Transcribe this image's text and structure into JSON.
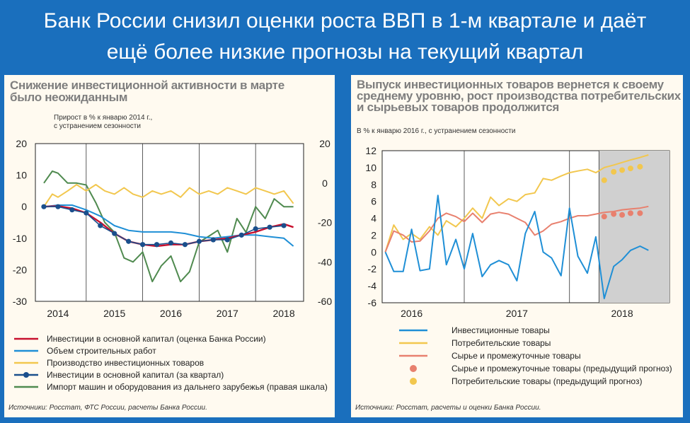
{
  "headline": {
    "line1": "Банк России снизил оценки роста ВВП в 1-м квартале и даёт",
    "line2": "ещё более низкие прогнозы на текущий квартал"
  },
  "left": {
    "title_line1": "Снижение инвестиционной активности в марте",
    "title_line2": "было неожиданным",
    "subtitle_line1": "Прирост в % к январю 2014 г.,",
    "subtitle_line2": "с устранением сезонности",
    "source": "Источники: Росстат, ФТС России,  расчеты Банка России.",
    "legend": [
      "Инвестиции в основной капитал (оценка Банка России)",
      "Объем строительных работ",
      "Производство инвестиционных товаров",
      "Инвестиции в основной капитал (за квартал)",
      "Импорт машин и оборудования из дальнего зарубежья (правая шкала)"
    ]
  },
  "right": {
    "title_line1": "Выпуск инвестиционных товаров вернется к своему",
    "title_line2": "среднему уровню, рост производства потребительских",
    "title_line3": "и сырьевых товаров продолжится",
    "subtitle": "В % к январю 2016 г., с устранением сезонности",
    "source": "Источники: Росстат, расчеты и оценки Банка России.",
    "legend": [
      "Инвестиционные товары",
      "Потребительские товары",
      "Сырье и промежуточные товары",
      "Сырье и промежуточные товары (предыдущий прогноз)",
      "Потребительские товары (предыдущий прогноз)"
    ]
  },
  "chart_data": [
    {
      "type": "line",
      "title": "Снижение инвестиционной активности в марте было неожиданным",
      "ylabel": "Прирост в % к январю 2014 г., с устранением сезонности",
      "x_ticks": [
        "2014",
        "2015",
        "2016",
        "2017",
        "2018"
      ],
      "ylim_left": [
        -30,
        20
      ],
      "yticks_left": [
        20,
        10,
        0,
        -10,
        -20,
        -30
      ],
      "ylim_right": [
        -60,
        20
      ],
      "yticks_right": [
        20,
        0,
        -20,
        -40,
        -60
      ],
      "grid": "vertical",
      "colors": {
        "investment_est": "#c8102e",
        "construction": "#1f8fd6",
        "production": "#f2c74e",
        "investment_q": "#1a4f8c",
        "imports": "#4f8a4f"
      },
      "series": [
        {
          "name": "Инвестиции в основной капитал (оценка Банка России)",
          "axis": "left",
          "x": [
            2013.75,
            2014.0,
            2014.25,
            2014.5,
            2014.75,
            2015.0,
            2015.25,
            2015.5,
            2015.75,
            2016.0,
            2016.25,
            2016.5,
            2016.75,
            2017.0,
            2017.25,
            2017.5,
            2017.75,
            2018.0,
            2018.17
          ],
          "y": [
            0,
            0.2,
            -0.5,
            -2,
            -5,
            -8.5,
            -11,
            -12,
            -12.5,
            -12,
            -12,
            -11,
            -10.5,
            -10,
            -9,
            -8,
            -6.5,
            -5.5,
            -6.5
          ]
        },
        {
          "name": "Объем строительных работ",
          "axis": "left",
          "x": [
            2013.75,
            2014.0,
            2014.25,
            2014.5,
            2014.75,
            2015.0,
            2015.25,
            2015.5,
            2015.75,
            2016.0,
            2016.25,
            2016.5,
            2016.75,
            2017.0,
            2017.25,
            2017.5,
            2017.75,
            2018.0,
            2018.17
          ],
          "y": [
            0,
            0.5,
            0.5,
            -1,
            -3,
            -6,
            -7.5,
            -8,
            -8,
            -8,
            -8.5,
            -9.5,
            -10,
            -9.5,
            -9,
            -9,
            -9.5,
            -10,
            -12.5
          ]
        },
        {
          "name": "Производство инвестиционных товаров",
          "axis": "left",
          "x": [
            2013.75,
            2013.9,
            2014.0,
            2014.17,
            2014.33,
            2014.5,
            2014.67,
            2014.83,
            2015.0,
            2015.17,
            2015.33,
            2015.5,
            2015.67,
            2015.83,
            2016.0,
            2016.17,
            2016.33,
            2016.5,
            2016.67,
            2016.83,
            2017.0,
            2017.17,
            2017.33,
            2017.5,
            2017.67,
            2017.83,
            2018.0,
            2018.17
          ],
          "y": [
            0,
            4,
            3,
            5,
            7,
            5,
            7,
            5,
            4,
            6,
            4,
            3,
            5,
            4,
            5,
            3,
            6,
            4,
            5,
            4,
            6,
            5,
            4,
            6,
            5,
            4,
            5,
            1
          ]
        },
        {
          "name": "Инвестиции в основной капитал (за квартал)",
          "axis": "left",
          "x": [
            2013.75,
            2014.0,
            2014.25,
            2014.5,
            2014.75,
            2015.0,
            2015.25,
            2015.5,
            2015.75,
            2016.0,
            2016.25,
            2016.5,
            2016.75,
            2017.0,
            2017.25,
            2017.5,
            2017.75,
            2018.0
          ],
          "y": [
            0,
            0,
            -1,
            -2,
            -6,
            -8.5,
            -11,
            -12,
            -12,
            -11.5,
            -12,
            -11,
            -10.5,
            -10.5,
            -9,
            -7,
            -6.5,
            -6
          ]
        },
        {
          "name": "Импорт машин и оборудования из дальнего зарубежья (правая шкала)",
          "axis": "right",
          "x": [
            2013.75,
            2013.9,
            2014.0,
            2014.17,
            2014.33,
            2014.5,
            2014.67,
            2014.83,
            2015.0,
            2015.17,
            2015.33,
            2015.5,
            2015.67,
            2015.83,
            2016.0,
            2016.17,
            2016.33,
            2016.5,
            2016.67,
            2016.83,
            2017.0,
            2017.17,
            2017.33,
            2017.5,
            2017.67,
            2017.83,
            2018.0,
            2018.17
          ],
          "y": [
            0,
            6,
            5,
            0,
            0,
            -1,
            -10,
            -20,
            -25,
            -38,
            -40,
            -35,
            -50,
            -42,
            -37,
            -50,
            -45,
            -30,
            -27,
            -24,
            -35,
            -18,
            -25,
            -12,
            -18,
            -8,
            -12,
            -12
          ]
        }
      ]
    },
    {
      "type": "line",
      "title": "Выпуск инвестиционных товаров вернется к своему среднему уровню, рост производства потребительских и сырьевых товаров продолжится",
      "ylabel": "В % к январю 2016 г., с устранением сезонности",
      "x_ticks": [
        "2016",
        "2017",
        "2018"
      ],
      "ylim": [
        -6,
        12
      ],
      "yticks": [
        12,
        10,
        8,
        6,
        4,
        2,
        0,
        -2,
        -4,
        -6
      ],
      "grid": "vertical",
      "forecast_shaded_from": 2018.0,
      "colors": {
        "investment_goods": "#1f8fd6",
        "consumer_goods": "#f2c74e",
        "raw_materials": "#e8806e",
        "raw_prev": "#e8806e",
        "consumer_prev": "#f2c74e",
        "forecast_area": "#d0d0d0"
      },
      "series": [
        {
          "name": "Инвестиционные товары",
          "x": [
            2015.75,
            2015.83,
            2015.92,
            2016.0,
            2016.08,
            2016.17,
            2016.25,
            2016.33,
            2016.42,
            2016.5,
            2016.58,
            2016.67,
            2016.75,
            2016.83,
            2016.92,
            2017.0,
            2017.08,
            2017.17,
            2017.25,
            2017.33,
            2017.42,
            2017.5,
            2017.58,
            2017.67,
            2017.75,
            2017.83,
            2017.92,
            2018.0,
            2018.08,
            2018.17,
            2018.25
          ],
          "y": [
            0,
            -2.3,
            -2.3,
            2.7,
            -2.2,
            -2,
            6.7,
            -1.5,
            1.5,
            -2,
            2.2,
            -2.9,
            -1.5,
            -1,
            -1.5,
            -3.4,
            2.2,
            4.8,
            0,
            -0.7,
            -2.8,
            5.2,
            -0.5,
            -2.5,
            1.8,
            -5.5,
            -1.7,
            -0.9,
            0.2,
            0.7,
            0.2
          ]
        },
        {
          "name": "Потребительские товары",
          "x": [
            2015.75,
            2015.83,
            2015.92,
            2016.0,
            2016.08,
            2016.17,
            2016.25,
            2016.33,
            2016.42,
            2016.5,
            2016.58,
            2016.67,
            2016.75,
            2016.83,
            2016.92,
            2017.0,
            2017.08,
            2017.17,
            2017.25,
            2017.33,
            2017.42,
            2017.5,
            2017.58,
            2017.67,
            2017.75,
            2017.83,
            2017.92,
            2018.0,
            2018.08,
            2018.17,
            2018.25
          ],
          "y": [
            0,
            3.2,
            1.5,
            2.2,
            1.5,
            3,
            2,
            3.7,
            3,
            4,
            5.2,
            4,
            6.5,
            5.5,
            6.3,
            6,
            6.8,
            7,
            8.7,
            8.5,
            9,
            9.4,
            9.6,
            9.8,
            9.4,
            10,
            10.3,
            10.6,
            10.9,
            11.2,
            11.5
          ]
        },
        {
          "name": "Сырье и промежуточные товары",
          "x": [
            2015.75,
            2015.83,
            2015.92,
            2016.0,
            2016.08,
            2016.17,
            2016.25,
            2016.33,
            2016.42,
            2016.5,
            2016.58,
            2016.67,
            2016.75,
            2016.83,
            2016.92,
            2017.0,
            2017.08,
            2017.17,
            2017.25,
            2017.33,
            2017.42,
            2017.5,
            2017.58,
            2017.67,
            2017.75,
            2017.83,
            2017.92,
            2018.0,
            2018.08,
            2018.17,
            2018.25
          ],
          "y": [
            0,
            2.5,
            2,
            1.2,
            1.3,
            2.5,
            4,
            4.6,
            4.2,
            3.6,
            4.6,
            3.5,
            4.5,
            4.7,
            4.5,
            4,
            3.5,
            2,
            2.5,
            3.3,
            3.6,
            4,
            4.3,
            4.3,
            4.5,
            4.7,
            4.8,
            5,
            5.1,
            5.2,
            5.4
          ]
        },
        {
          "name": "Сырье и промежуточные товары (предыдущий прогноз)",
          "x": [
            2017.83,
            2017.92,
            2018.0,
            2018.08,
            2018.17
          ],
          "y": [
            4.2,
            4.5,
            4.4,
            4.6,
            4.6
          ]
        },
        {
          "name": "Потребительские товары (предыдущий прогноз)",
          "x": [
            2017.83,
            2017.92,
            2018.0,
            2018.08,
            2018.17
          ],
          "y": [
            8.5,
            9.5,
            9.7,
            9.9,
            10.1
          ]
        }
      ]
    }
  ]
}
